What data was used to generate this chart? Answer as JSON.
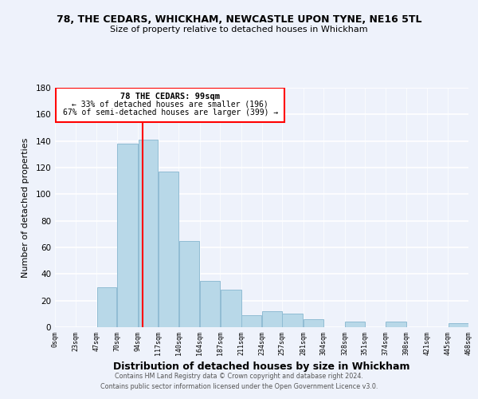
{
  "title1": "78, THE CEDARS, WHICKHAM, NEWCASTLE UPON TYNE, NE16 5TL",
  "title2": "Size of property relative to detached houses in Whickham",
  "xlabel": "Distribution of detached houses by size in Whickham",
  "ylabel": "Number of detached properties",
  "bar_color": "#b8d8e8",
  "bar_edge_color": "#90bcd4",
  "vline_color": "red",
  "vline_x": 99,
  "annotation_title": "78 THE CEDARS: 99sqm",
  "annotation_line1": "← 33% of detached houses are smaller (196)",
  "annotation_line2": "67% of semi-detached houses are larger (399) →",
  "bin_edges": [
    0,
    23,
    47,
    70,
    94,
    117,
    140,
    164,
    187,
    211,
    234,
    257,
    281,
    304,
    328,
    351,
    374,
    398,
    421,
    445,
    468
  ],
  "bin_counts": [
    0,
    0,
    30,
    138,
    141,
    117,
    65,
    35,
    28,
    9,
    12,
    10,
    6,
    0,
    4,
    0,
    4,
    0,
    0,
    3
  ],
  "xlim": [
    0,
    468
  ],
  "ylim": [
    0,
    180
  ],
  "yticks": [
    0,
    20,
    40,
    60,
    80,
    100,
    120,
    140,
    160,
    180
  ],
  "xtick_labels": [
    "0sqm",
    "23sqm",
    "47sqm",
    "70sqm",
    "94sqm",
    "117sqm",
    "140sqm",
    "164sqm",
    "187sqm",
    "211sqm",
    "234sqm",
    "257sqm",
    "281sqm",
    "304sqm",
    "328sqm",
    "351sqm",
    "374sqm",
    "398sqm",
    "421sqm",
    "445sqm",
    "468sqm"
  ],
  "footer1": "Contains HM Land Registry data © Crown copyright and database right 2024.",
  "footer2": "Contains public sector information licensed under the Open Government Licence v3.0.",
  "background_color": "#eef2fb"
}
